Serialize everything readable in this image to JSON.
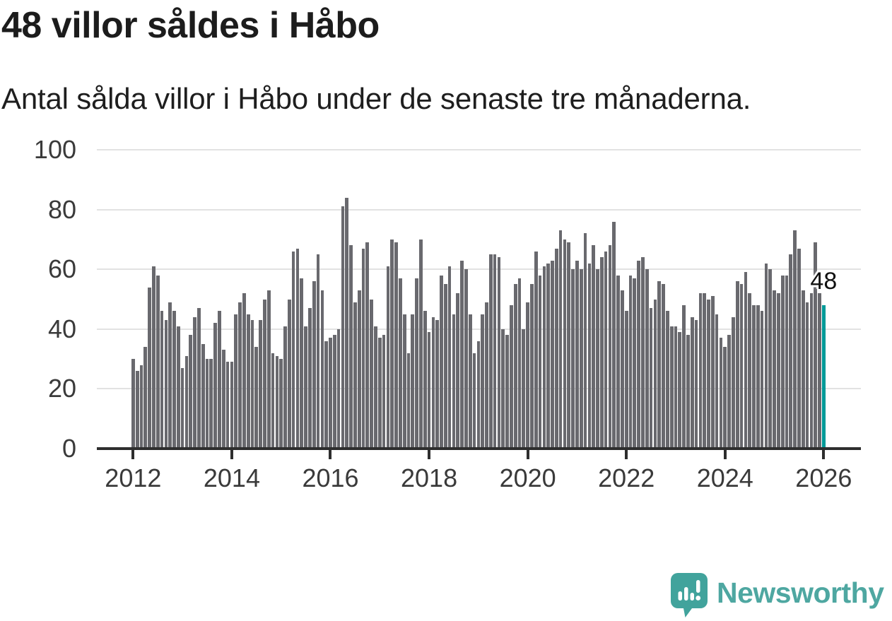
{
  "title": "48 villor såldes i Håbo",
  "subtitle": "Antal sålda villor i Håbo under de senaste tre månaderna.",
  "branding": {
    "logo_text": "Newsworthy",
    "text_color": "#4ea7a1",
    "icon_color": "#41a39c"
  },
  "chart_data": {
    "type": "bar",
    "title": "48 villor såldes i Håbo",
    "subtitle": "Antal sålda villor i Håbo under de senaste tre månaderna.",
    "xlabel": "",
    "ylabel": "",
    "x_axis": {
      "tick_labels": [
        "2012",
        "2014",
        "2016",
        "2018",
        "2020",
        "2022",
        "2024",
        "2026"
      ],
      "start": "2012-01",
      "interval": "monthly"
    },
    "y_axis": {
      "ticks": [
        0,
        20,
        40,
        60,
        80,
        100
      ],
      "ylim": [
        0,
        100
      ]
    },
    "grid": "horizontal",
    "legend": "none",
    "series": [
      {
        "name": "Antal sålda villor (rullande tre månader)",
        "values": [
          30,
          26,
          28,
          34,
          54,
          61,
          58,
          46,
          43,
          49,
          46,
          41,
          27,
          31,
          38,
          44,
          47,
          35,
          30,
          30,
          42,
          46,
          33,
          29,
          29,
          45,
          49,
          52,
          45,
          43,
          34,
          43,
          50,
          53,
          32,
          31,
          30,
          41,
          50,
          66,
          67,
          57,
          41,
          47,
          56,
          65,
          53,
          36,
          37,
          38,
          40,
          81,
          84,
          68,
          49,
          53,
          67,
          69,
          50,
          41,
          37,
          38,
          61,
          70,
          69,
          57,
          45,
          32,
          45,
          57,
          70,
          46,
          39,
          44,
          43,
          58,
          55,
          61,
          45,
          52,
          63,
          60,
          45,
          32,
          36,
          45,
          49,
          65,
          65,
          64,
          40,
          38,
          48,
          55,
          57,
          40,
          49,
          55,
          66,
          58,
          61,
          62,
          63,
          67,
          73,
          70,
          69,
          60,
          63,
          60,
          72,
          62,
          68,
          60,
          64,
          66,
          68,
          76,
          58,
          53,
          46,
          58,
          57,
          63,
          64,
          60,
          47,
          50,
          56,
          55,
          46,
          41,
          41,
          39,
          48,
          38,
          44,
          43,
          52,
          52,
          50,
          51,
          45,
          37,
          34,
          38,
          44,
          56,
          55,
          59,
          52,
          48,
          48,
          46,
          62,
          60,
          53,
          52,
          58,
          58,
          65,
          73,
          67,
          53,
          49,
          52,
          69,
          52,
          48
        ]
      }
    ],
    "highlight": {
      "index": 168,
      "value": 48,
      "label": "48",
      "color": "#009a98"
    },
    "colors": {
      "bar": "#69696e",
      "highlight": "#009a98",
      "grid": "#e2e2e2",
      "axis": "#2e2e2e",
      "tick_text": "#3a3a3a"
    }
  }
}
